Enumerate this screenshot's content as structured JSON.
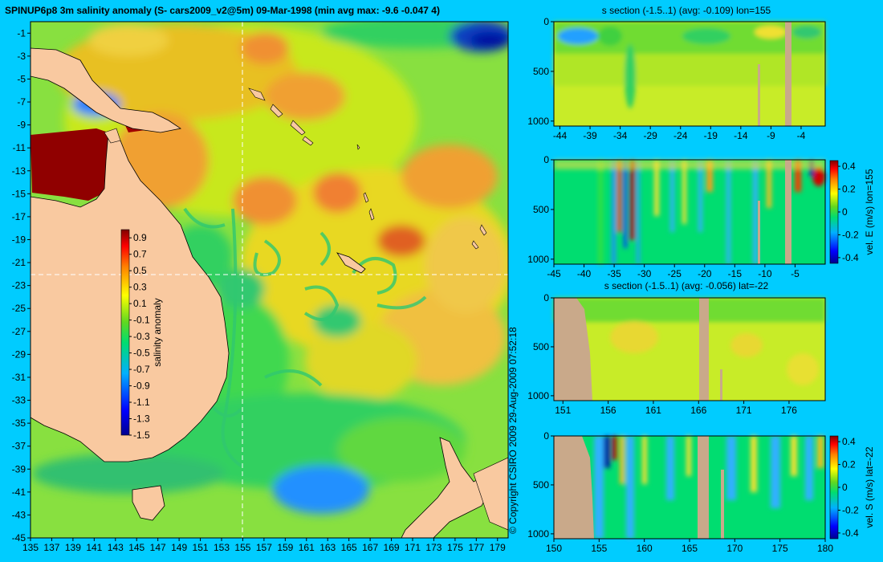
{
  "main_title": "SPINUP6p8 3m salinity anomaly (S- cars2009_v2@5m) 09-Mar-1998 (min avg max: -9.6 -0.047 4)",
  "copyright": "© Copyright CSIRO 2009   29-Aug-2009 07:52:18",
  "colors": {
    "background": "#00ccff",
    "land": "#f9c9a0",
    "section_land": "#c9a98a"
  },
  "chart_data": [
    {
      "type": "heatmap",
      "name": "map",
      "x_ticks": [
        "135",
        "137",
        "139",
        "141",
        "143",
        "145",
        "147",
        "149",
        "151",
        "153",
        "155",
        "157",
        "159",
        "161",
        "163",
        "165",
        "167",
        "169",
        "171",
        "173",
        "175",
        "177",
        "179"
      ],
      "y_ticks": [
        "-1",
        "-3",
        "-5",
        "-7",
        "-9",
        "-11",
        "-13",
        "-15",
        "-17",
        "-19",
        "-21",
        "-23",
        "-25",
        "-27",
        "-29",
        "-31",
        "-33",
        "-35",
        "-37",
        "-39",
        "-41",
        "-43",
        "-45"
      ],
      "xlim": [
        135,
        180
      ],
      "ylim": [
        -45,
        0
      ],
      "crosshair": {
        "lon": 155,
        "lat": -22
      },
      "colorbar": {
        "label": "salinity anomaly",
        "ticks": [
          "0.9",
          "0.7",
          "0.5",
          "0.3",
          "0.1",
          "-0.1",
          "-0.3",
          "-0.5",
          "-0.7",
          "-0.9",
          "-1.1",
          "-1.3",
          "-1.5"
        ],
        "range": [
          -1.5,
          1.0
        ]
      }
    },
    {
      "type": "heatmap",
      "name": "s-section-lon",
      "title": "s section (-1.5..1) (avg: -0.109) lon=155",
      "x_ticks": [
        "-44",
        "-39",
        "-34",
        "-29",
        "-24",
        "-19",
        "-14",
        "-9",
        "-4"
      ],
      "y_ticks": [
        "0",
        "500",
        "1000"
      ],
      "xlim": [
        -45,
        0
      ],
      "ylim": [
        1050,
        0
      ]
    },
    {
      "type": "heatmap",
      "name": "velE-section-lon",
      "x_ticks": [
        "-45",
        "-40",
        "-35",
        "-30",
        "-25",
        "-20",
        "-15",
        "-10",
        "-5"
      ],
      "y_ticks": [
        "0",
        "500",
        "1000"
      ],
      "xlim": [
        -45,
        0
      ],
      "ylim": [
        1050,
        0
      ],
      "colorbar": {
        "label": "vel. E (m/s) lon=155",
        "ticks": [
          "0.4",
          "0.2",
          "0",
          "-0.2",
          "-0.4"
        ],
        "range": [
          -0.45,
          0.45
        ]
      }
    },
    {
      "type": "heatmap",
      "name": "s-section-lat",
      "title": "s section (-1.5..1) (avg: -0.056) lat=-22",
      "x_ticks": [
        "151",
        "156",
        "161",
        "166",
        "171",
        "176"
      ],
      "y_ticks": [
        "0",
        "500",
        "1000"
      ],
      "xlim": [
        150,
        180
      ],
      "ylim": [
        1050,
        0
      ]
    },
    {
      "type": "heatmap",
      "name": "velS-section-lat",
      "x_ticks": [
        "150",
        "155",
        "160",
        "165",
        "170",
        "175",
        "180"
      ],
      "y_ticks": [
        "0",
        "500",
        "1000"
      ],
      "xlim": [
        150,
        180
      ],
      "ylim": [
        1050,
        0
      ],
      "colorbar": {
        "label": "vel. S (m/s) lat=-22",
        "ticks": [
          "0.4",
          "0.2",
          "0",
          "-0.2",
          "-0.4"
        ],
        "range": [
          -0.45,
          0.45
        ]
      }
    }
  ]
}
